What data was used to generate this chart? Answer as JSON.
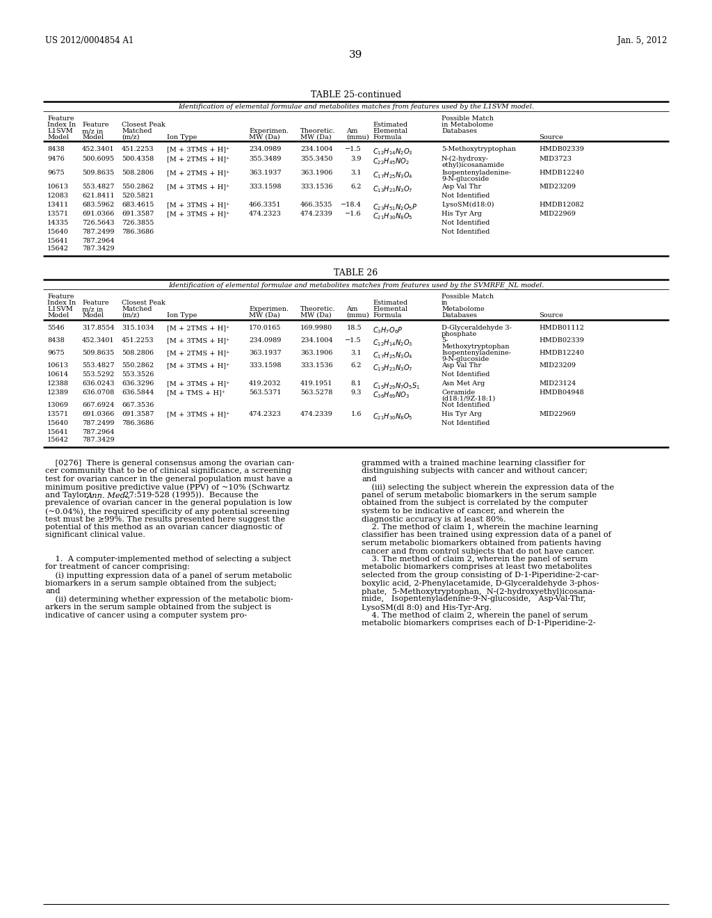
{
  "header_left": "US 2012/0004854 A1",
  "header_right": "Jan. 5, 2012",
  "page_number": "39",
  "bg": "#ffffff"
}
